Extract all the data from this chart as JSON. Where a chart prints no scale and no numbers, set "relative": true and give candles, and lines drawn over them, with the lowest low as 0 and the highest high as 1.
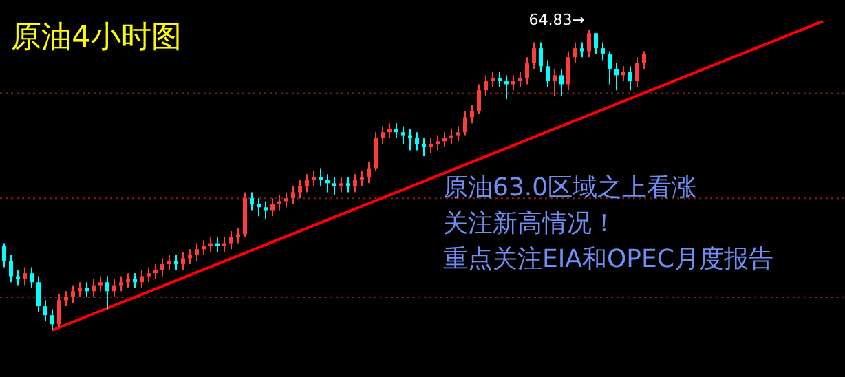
{
  "chart_data": {
    "type": "candlestick",
    "title": "原油4小时图",
    "relative": true,
    "categories": [
      null,
      null,
      null,
      null,
      null,
      null,
      null,
      null,
      null,
      null,
      null,
      null,
      null,
      null,
      null,
      null,
      null,
      null,
      null,
      null,
      null,
      null,
      null,
      null,
      null,
      null,
      null,
      null,
      null,
      null,
      null,
      null,
      null,
      null,
      null,
      null,
      null,
      null,
      null,
      null,
      null,
      null,
      null,
      null,
      null,
      null,
      null,
      null,
      null,
      null,
      null,
      null,
      null,
      null,
      null,
      null,
      null,
      null,
      null,
      null,
      null,
      null,
      null,
      null,
      null,
      null,
      null,
      null,
      null,
      null,
      null,
      null,
      null,
      null,
      null,
      null,
      null,
      null,
      null,
      null,
      null,
      null,
      null,
      null,
      null,
      null,
      null,
      null,
      null,
      null,
      null,
      null,
      null,
      null,
      null,
      null,
      null,
      null,
      null,
      null,
      null,
      null,
      null,
      null,
      null,
      null,
      null,
      null,
      null,
      null,
      null,
      null,
      null,
      null,
      null,
      null,
      null,
      null,
      null,
      null
    ],
    "ohlc": [
      [
        0.28,
        0.29,
        0.21,
        0.23
      ],
      [
        0.23,
        0.25,
        0.16,
        0.18
      ],
      [
        0.18,
        0.2,
        0.15,
        0.17
      ],
      [
        0.17,
        0.21,
        0.15,
        0.19
      ],
      [
        0.19,
        0.21,
        0.14,
        0.16
      ],
      [
        0.16,
        0.18,
        0.06,
        0.08
      ],
      [
        0.08,
        0.1,
        0.03,
        0.05
      ],
      [
        0.05,
        0.07,
        0,
        0.02
      ],
      [
        0.02,
        0.12,
        0.01,
        0.1
      ],
      [
        0.1,
        0.13,
        0.08,
        0.11
      ],
      [
        0.11,
        0.15,
        0.09,
        0.13
      ],
      [
        0.13,
        0.16,
        0.11,
        0.14
      ],
      [
        0.14,
        0.16,
        0.11,
        0.13
      ],
      [
        0.13,
        0.17,
        0.11,
        0.15
      ],
      [
        0.15,
        0.18,
        0.13,
        0.16
      ],
      [
        0.16,
        0.18,
        0.07,
        0.13
      ],
      [
        0.13,
        0.17,
        0.11,
        0.15
      ],
      [
        0.15,
        0.18,
        0.13,
        0.16
      ],
      [
        0.16,
        0.19,
        0.14,
        0.17
      ],
      [
        0.17,
        0.19,
        0.14,
        0.16
      ],
      [
        0.16,
        0.2,
        0.14,
        0.18
      ],
      [
        0.18,
        0.21,
        0.16,
        0.19
      ],
      [
        0.19,
        0.22,
        0.17,
        0.2
      ],
      [
        0.2,
        0.24,
        0.18,
        0.22
      ],
      [
        0.22,
        0.25,
        0.2,
        0.23
      ],
      [
        0.23,
        0.25,
        0.2,
        0.22
      ],
      [
        0.22,
        0.26,
        0.2,
        0.24
      ],
      [
        0.24,
        0.27,
        0.22,
        0.25
      ],
      [
        0.25,
        0.29,
        0.23,
        0.27
      ],
      [
        0.27,
        0.3,
        0.25,
        0.28
      ],
      [
        0.28,
        0.31,
        0.26,
        0.29
      ],
      [
        0.29,
        0.31,
        0.26,
        0.28
      ],
      [
        0.28,
        0.31,
        0.26,
        0.29
      ],
      [
        0.29,
        0.33,
        0.27,
        0.31
      ],
      [
        0.31,
        0.34,
        0.29,
        0.32
      ],
      [
        0.32,
        0.46,
        0.31,
        0.44
      ],
      [
        0.44,
        0.46,
        0.4,
        0.42
      ],
      [
        0.42,
        0.44,
        0.38,
        0.41
      ],
      [
        0.41,
        0.43,
        0.37,
        0.4
      ],
      [
        0.4,
        0.44,
        0.38,
        0.42
      ],
      [
        0.42,
        0.45,
        0.4,
        0.43
      ],
      [
        0.43,
        0.46,
        0.41,
        0.44
      ],
      [
        0.44,
        0.48,
        0.42,
        0.46
      ],
      [
        0.46,
        0.5,
        0.44,
        0.48
      ],
      [
        0.48,
        0.52,
        0.46,
        0.5
      ],
      [
        0.5,
        0.53,
        0.48,
        0.51
      ],
      [
        0.51,
        0.54,
        0.48,
        0.5
      ],
      [
        0.5,
        0.52,
        0.46,
        0.49
      ],
      [
        0.49,
        0.51,
        0.45,
        0.48
      ],
      [
        0.48,
        0.51,
        0.46,
        0.49
      ],
      [
        0.49,
        0.51,
        0.46,
        0.48
      ],
      [
        0.48,
        0.52,
        0.46,
        0.5
      ],
      [
        0.5,
        0.53,
        0.48,
        0.51
      ],
      [
        0.51,
        0.56,
        0.49,
        0.54
      ],
      [
        0.54,
        0.66,
        0.53,
        0.64
      ],
      [
        0.64,
        0.68,
        0.62,
        0.66
      ],
      [
        0.66,
        0.69,
        0.64,
        0.67
      ],
      [
        0.67,
        0.69,
        0.64,
        0.66
      ],
      [
        0.66,
        0.68,
        0.62,
        0.65
      ],
      [
        0.65,
        0.67,
        0.6,
        0.64
      ],
      [
        0.64,
        0.66,
        0.6,
        0.62
      ],
      [
        0.62,
        0.64,
        0.58,
        0.61
      ],
      [
        0.61,
        0.64,
        0.59,
        0.62
      ],
      [
        0.62,
        0.65,
        0.6,
        0.63
      ],
      [
        0.63,
        0.66,
        0.61,
        0.64
      ],
      [
        0.64,
        0.67,
        0.62,
        0.65
      ],
      [
        0.65,
        0.68,
        0.63,
        0.66
      ],
      [
        0.66,
        0.73,
        0.65,
        0.71
      ],
      [
        0.71,
        0.75,
        0.69,
        0.73
      ],
      [
        0.73,
        0.82,
        0.72,
        0.8
      ],
      [
        0.8,
        0.85,
        0.78,
        0.83
      ],
      [
        0.83,
        0.86,
        0.81,
        0.84
      ],
      [
        0.84,
        0.86,
        0.81,
        0.83
      ],
      [
        0.83,
        0.85,
        0.77,
        0.82
      ],
      [
        0.82,
        0.85,
        0.8,
        0.83
      ],
      [
        0.83,
        0.86,
        0.81,
        0.84
      ],
      [
        0.84,
        0.91,
        0.82,
        0.89
      ],
      [
        0.89,
        0.96,
        0.87,
        0.94
      ],
      [
        0.94,
        0.96,
        0.86,
        0.88
      ],
      [
        0.88,
        0.9,
        0.81,
        0.83
      ],
      [
        0.83,
        0.87,
        0.78,
        0.85
      ],
      [
        0.85,
        0.87,
        0.78,
        0.82
      ],
      [
        0.82,
        0.93,
        0.8,
        0.91
      ],
      [
        0.91,
        0.96,
        0.89,
        0.94
      ],
      [
        0.94,
        0.96,
        0.91,
        0.93
      ],
      [
        0.93,
        1,
        0.91,
        0.99
      ],
      [
        0.99,
        0.99,
        0.92,
        0.94
      ],
      [
        0.94,
        0.96,
        0.9,
        0.92
      ],
      [
        0.92,
        0.93,
        0.82,
        0.87
      ],
      [
        0.87,
        0.89,
        0.8,
        0.85
      ],
      [
        0.85,
        0.88,
        0.83,
        0.86
      ],
      [
        0.86,
        0.88,
        0.8,
        0.83
      ],
      [
        0.83,
        0.91,
        0.81,
        0.89
      ],
      [
        0.89,
        0.93,
        0.87,
        0.92
      ],
      null,
      null,
      null,
      null,
      null,
      null,
      null,
      null,
      null,
      null,
      null,
      null,
      null,
      null,
      null,
      null,
      null,
      null,
      null,
      null,
      null,
      null,
      null,
      null,
      null,
      null
    ],
    "colors": [
      "#00ffff",
      "#00ffff",
      "#00ffff",
      "#ff3c3c",
      "#00ffff",
      "#00ffff",
      "#00ffff",
      "#00ffff",
      "#ff3c3c",
      "#ff3c3c",
      "#ff3c3c",
      "#ff3c3c",
      "#00ffff",
      "#ff3c3c",
      "#ff3c3c",
      "#00ffff",
      "#ff3c3c",
      "#ff3c3c",
      "#ff3c3c",
      "#00ffff",
      "#ff3c3c",
      "#ff3c3c",
      "#ff3c3c",
      "#ff3c3c",
      "#ff3c3c",
      "#00ffff",
      "#ff3c3c",
      "#ff3c3c",
      "#ff3c3c",
      "#ff3c3c",
      "#ff3c3c",
      "#00ffff",
      "#ff3c3c",
      "#ff3c3c",
      "#ff3c3c",
      "#ff3c3c",
      "#00ffff",
      "#00ffff",
      "#00ffff",
      "#ff3c3c",
      "#ff3c3c",
      "#ff3c3c",
      "#ff3c3c",
      "#ff3c3c",
      "#ff3c3c",
      "#ff3c3c",
      "#00ffff",
      "#00ffff",
      "#00ffff",
      "#ff3c3c",
      "#00ffff",
      "#ff3c3c",
      "#ff3c3c",
      "#ff3c3c",
      "#ff3c3c",
      "#ff3c3c",
      "#ff3c3c",
      "#00ffff",
      "#00ffff",
      "#00ffff",
      "#00ffff",
      "#00ffff",
      "#ff3c3c",
      "#ff3c3c",
      "#ff3c3c",
      "#ff3c3c",
      "#ff3c3c",
      "#ff3c3c",
      "#ff3c3c",
      "#ff3c3c",
      "#ff3c3c",
      "#ff3c3c",
      "#00ffff",
      "#00ffff",
      "#ff3c3c",
      "#ff3c3c",
      "#ff3c3c",
      "#ff3c3c",
      "#00ffff",
      "#00ffff",
      "#ff3c3c",
      "#00ffff",
      "#ff3c3c",
      "#ff3c3c",
      "#00ffff",
      "#ff3c3c",
      "#00ffff",
      "#00ffff",
      "#00ffff",
      "#00ffff",
      "#ff3c3c",
      "#00ffff",
      "#ff3c3c",
      "#ff3c3c",
      null,
      null,
      null,
      null,
      null,
      null,
      null,
      null,
      null,
      null,
      null,
      null,
      null,
      null,
      null,
      null,
      null,
      null,
      null,
      null,
      null,
      null,
      null,
      null,
      null,
      null
    ],
    "series": [
      {
        "type": "line",
        "color": "#ff0000",
        "values": [
          null,
          null,
          null,
          null,
          null,
          null,
          null,
          0,
          null,
          null,
          null,
          null,
          null,
          null,
          null,
          null,
          null,
          null,
          null,
          null,
          null,
          null,
          null,
          null,
          null,
          null,
          null,
          null,
          null,
          null,
          null,
          null,
          null,
          null,
          null,
          null,
          null,
          null,
          null,
          null,
          null,
          null,
          null,
          null,
          null,
          null,
          null,
          null,
          null,
          null,
          null,
          null,
          null,
          null,
          null,
          null,
          null,
          null,
          null,
          null,
          null,
          null,
          null,
          null,
          null,
          null,
          null,
          null,
          null,
          null,
          null,
          null,
          null,
          null,
          null,
          null,
          null,
          null,
          null,
          null,
          null,
          null,
          null,
          null,
          null,
          null,
          null,
          null,
          null,
          null,
          null,
          null,
          null,
          null,
          null,
          null,
          null,
          null,
          null,
          null,
          null,
          null,
          null,
          null,
          null,
          null,
          null,
          null,
          null,
          null,
          null,
          null,
          null,
          null,
          null,
          null,
          null,
          null,
          null,
          1.03
        ]
      }
    ],
    "ref_lines": [
      {
        "axis": "y",
        "value": 0.79,
        "color": "#8b1a1a",
        "line_style": "dotted"
      },
      {
        "axis": "y",
        "value": 0.44,
        "color": "#8b1a1a",
        "line_style": "dotted"
      },
      {
        "axis": "y",
        "value": 0.11,
        "color": "#8b1a1a",
        "line_style": "dotted"
      }
    ],
    "annotations": [
      "64.83→",
      "原油63.0区域之上看涨",
      "关注新高情况！",
      "重点关注EIA和OPEC月度报告"
    ]
  }
}
